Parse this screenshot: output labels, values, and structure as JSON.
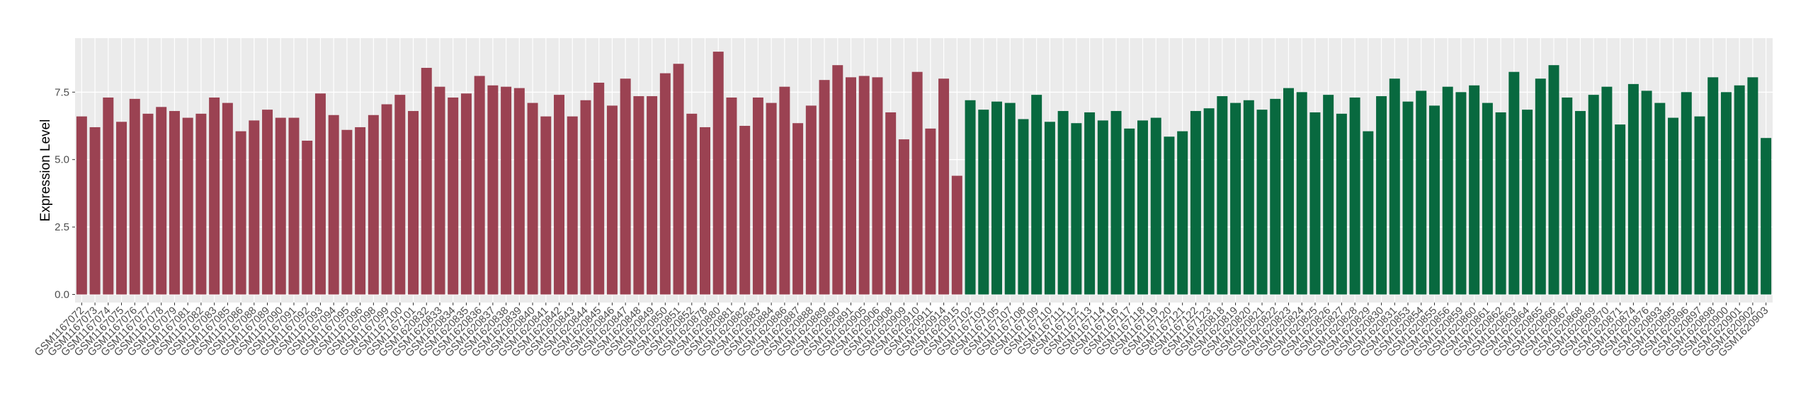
{
  "chart_data": {
    "type": "bar",
    "ylabel": "Expression Level",
    "categories": [
      "GSM1167072",
      "GSM1167073",
      "GSM1167074",
      "GSM1167075",
      "GSM1167076",
      "GSM1167077",
      "GSM1167078",
      "GSM1167079",
      "GSM1167081",
      "GSM1167082",
      "GSM1167083",
      "GSM1167085",
      "GSM1167086",
      "GSM1167088",
      "GSM1167089",
      "GSM1167090",
      "GSM1167091",
      "GSM1167092",
      "GSM1167093",
      "GSM1167094",
      "GSM1167095",
      "GSM1167096",
      "GSM1167098",
      "GSM1167099",
      "GSM1167100",
      "GSM1167101",
      "GSM1620832",
      "GSM1620833",
      "GSM1620834",
      "GSM1620835",
      "GSM1620836",
      "GSM1620837",
      "GSM1620838",
      "GSM1620839",
      "GSM1620840",
      "GSM1620841",
      "GSM1620842",
      "GSM1620843",
      "GSM1620844",
      "GSM1620845",
      "GSM1620846",
      "GSM1620847",
      "GSM1620848",
      "GSM1620849",
      "GSM1620850",
      "GSM1620851",
      "GSM1620852",
      "GSM1620878",
      "GSM1620880",
      "GSM1620881",
      "GSM1620882",
      "GSM1620883",
      "GSM1620884",
      "GSM1620886",
      "GSM1620887",
      "GSM1620888",
      "GSM1620889",
      "GSM1620890",
      "GSM1620891",
      "GSM1620905",
      "GSM1620906",
      "GSM1620908",
      "GSM1620909",
      "GSM1620910",
      "GSM1620911",
      "GSM1620914",
      "GSM1620915",
      "GSM1167102",
      "GSM1167103",
      "GSM1167105",
      "GSM1167107",
      "GSM1167108",
      "GSM1167109",
      "GSM1167110",
      "GSM1167111",
      "GSM1167112",
      "GSM1167113",
      "GSM1167114",
      "GSM1167116",
      "GSM1167117",
      "GSM1167118",
      "GSM1167119",
      "GSM1167120",
      "GSM1167121",
      "GSM1167122",
      "GSM1167123",
      "GSM1620818",
      "GSM1620819",
      "GSM1620820",
      "GSM1620821",
      "GSM1620822",
      "GSM1620823",
      "GSM1620824",
      "GSM1620825",
      "GSM1620826",
      "GSM1620827",
      "GSM1620828",
      "GSM1620829",
      "GSM1620830",
      "GSM1620831",
      "GSM1620853",
      "GSM1620854",
      "GSM1620855",
      "GSM1620856",
      "GSM1620859",
      "GSM1620860",
      "GSM1620861",
      "GSM1620862",
      "GSM1620863",
      "GSM1620864",
      "GSM1620865",
      "GSM1620866",
      "GSM1620867",
      "GSM1620868",
      "GSM1620869",
      "GSM1620870",
      "GSM1620871",
      "GSM1620874",
      "GSM1620876",
      "GSM1620893",
      "GSM1620895",
      "GSM1620896",
      "GSM1620897",
      "GSM1620898",
      "GSM1620900",
      "GSM1620901",
      "GSM1620902",
      "GSM1620903"
    ],
    "values": [
      6.6,
      6.2,
      7.3,
      6.4,
      7.25,
      6.7,
      6.95,
      6.8,
      6.55,
      6.7,
      7.3,
      7.1,
      6.05,
      6.45,
      6.85,
      6.55,
      6.55,
      5.7,
      7.45,
      6.65,
      6.1,
      6.2,
      6.65,
      7.05,
      7.4,
      6.8,
      8.4,
      7.7,
      7.3,
      7.45,
      8.1,
      7.75,
      7.7,
      7.65,
      7.1,
      6.6,
      7.4,
      6.6,
      7.2,
      7.85,
      7.0,
      8.0,
      7.35,
      7.35,
      8.2,
      8.55,
      6.7,
      6.2,
      9.0,
      7.3,
      6.25,
      7.3,
      7.1,
      7.7,
      6.35,
      7.0,
      7.95,
      8.5,
      8.05,
      8.1,
      8.05,
      6.75,
      5.75,
      8.25,
      6.15,
      8.0,
      4.4,
      7.2,
      6.85,
      7.15,
      7.1,
      6.5,
      7.4,
      6.4,
      6.8,
      6.35,
      6.75,
      6.45,
      6.8,
      6.15,
      6.45,
      6.55,
      5.85,
      6.05,
      6.8,
      6.9,
      7.35,
      7.1,
      7.2,
      6.85,
      7.25,
      7.65,
      7.5,
      6.75,
      7.4,
      6.7,
      7.3,
      6.05,
      7.35,
      8.0,
      7.15,
      7.55,
      7.0,
      7.7,
      7.5,
      7.75,
      7.1,
      6.75,
      8.25,
      6.85,
      8.0,
      8.5,
      7.3,
      6.8,
      7.4,
      7.7,
      6.3,
      7.8,
      7.55,
      7.1,
      6.55,
      7.5,
      6.6,
      8.05,
      7.5,
      7.75,
      8.05,
      5.8
    ],
    "colors": [
      "#9b4252",
      "#9b4252",
      "#9b4252",
      "#9b4252",
      "#9b4252",
      "#9b4252",
      "#9b4252",
      "#9b4252",
      "#9b4252",
      "#9b4252",
      "#9b4252",
      "#9b4252",
      "#9b4252",
      "#9b4252",
      "#9b4252",
      "#9b4252",
      "#9b4252",
      "#9b4252",
      "#9b4252",
      "#9b4252",
      "#9b4252",
      "#9b4252",
      "#9b4252",
      "#9b4252",
      "#9b4252",
      "#9b4252",
      "#9b4252",
      "#9b4252",
      "#9b4252",
      "#9b4252",
      "#9b4252",
      "#9b4252",
      "#9b4252",
      "#9b4252",
      "#9b4252",
      "#9b4252",
      "#9b4252",
      "#9b4252",
      "#9b4252",
      "#9b4252",
      "#9b4252",
      "#9b4252",
      "#9b4252",
      "#9b4252",
      "#9b4252",
      "#9b4252",
      "#9b4252",
      "#9b4252",
      "#9b4252",
      "#9b4252",
      "#9b4252",
      "#9b4252",
      "#9b4252",
      "#9b4252",
      "#9b4252",
      "#9b4252",
      "#9b4252",
      "#9b4252",
      "#9b4252",
      "#9b4252",
      "#9b4252",
      "#9b4252",
      "#9b4252",
      "#9b4252",
      "#9b4252",
      "#9b4252",
      "#9b4252",
      "#08693f",
      "#08693f",
      "#08693f",
      "#08693f",
      "#08693f",
      "#08693f",
      "#08693f",
      "#08693f",
      "#08693f",
      "#08693f",
      "#08693f",
      "#08693f",
      "#08693f",
      "#08693f",
      "#08693f",
      "#08693f",
      "#08693f",
      "#08693f",
      "#08693f",
      "#08693f",
      "#08693f",
      "#08693f",
      "#08693f",
      "#08693f",
      "#08693f",
      "#08693f",
      "#08693f",
      "#08693f",
      "#08693f",
      "#08693f",
      "#08693f",
      "#08693f",
      "#08693f",
      "#08693f",
      "#08693f",
      "#08693f",
      "#08693f",
      "#08693f",
      "#08693f",
      "#08693f",
      "#08693f",
      "#08693f",
      "#08693f",
      "#08693f",
      "#08693f",
      "#08693f",
      "#08693f",
      "#08693f",
      "#08693f",
      "#08693f",
      "#08693f",
      "#08693f",
      "#08693f",
      "#08693f",
      "#08693f",
      "#08693f",
      "#08693f",
      "#08693f",
      "#08693f",
      "#08693f",
      "#08693f"
    ],
    "ylim": [
      -0.3,
      9.5
    ],
    "yticks": [
      {
        "value": 0,
        "label": "0.0"
      },
      {
        "value": 2.5,
        "label": "2.5"
      },
      {
        "value": 5,
        "label": "5.0"
      },
      {
        "value": 7.5,
        "label": "7.5"
      }
    ],
    "grid": true
  }
}
